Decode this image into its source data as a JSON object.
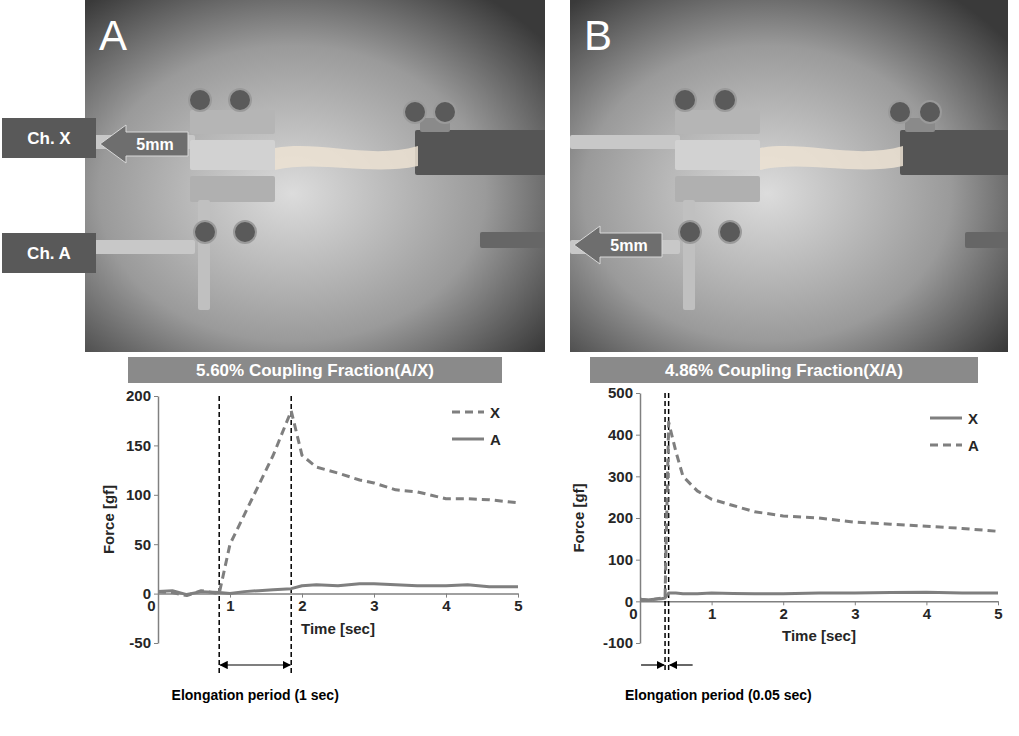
{
  "photos": [
    {
      "letter": "A",
      "labels": [
        "Ch. X",
        "Ch. A"
      ],
      "arrow": "5mm"
    },
    {
      "letter": "B",
      "arrow": "5mm"
    }
  ],
  "chart_data": [
    {
      "type": "line",
      "title": "5.60% Coupling Fraction(A/X)",
      "x_label": "Time [sec]",
      "y_label": "Force [gf]",
      "x": [
        0,
        0.2,
        0.4,
        0.6,
        0.85,
        1.0,
        1.2,
        1.4,
        1.6,
        1.85,
        2.0,
        2.2,
        2.5,
        2.8,
        3.0,
        3.3,
        3.6,
        4.0,
        4.3,
        4.6,
        5.0
      ],
      "series": [
        {
          "name": "X",
          "color": "#7f7f7f",
          "line_style": "dashed",
          "values": [
            2,
            1,
            -2,
            3,
            0,
            50,
            80,
            110,
            140,
            185,
            140,
            128,
            122,
            115,
            112,
            105,
            103,
            96,
            96,
            95,
            92
          ]
        },
        {
          "name": "A",
          "color": "#7f7f7f",
          "line_style": "solid",
          "values": [
            2,
            3,
            -1,
            2,
            1,
            0,
            2,
            3,
            4,
            5,
            8,
            9,
            8,
            10,
            10,
            9,
            8,
            8,
            9,
            7,
            7
          ]
        }
      ],
      "xlim": [
        0,
        5
      ],
      "xticks": [
        0,
        1,
        2,
        3,
        4,
        5
      ],
      "ylim": [
        -50,
        200
      ],
      "yticks": [
        -50,
        0,
        50,
        100,
        150,
        200
      ],
      "legend": "upper right",
      "vlines": [
        0.85,
        1.85
      ],
      "annotation": "Elongation period (1 sec)"
    },
    {
      "type": "line",
      "title": "4.86% Coupling Fraction(X/A)",
      "x_label": "Time [sec]",
      "y_label": "Force [gf]",
      "x": [
        0,
        0.1,
        0.2,
        0.3,
        0.35,
        0.4,
        0.5,
        0.6,
        0.8,
        1.0,
        1.3,
        1.6,
        2.0,
        2.5,
        3.0,
        3.5,
        4.0,
        4.5,
        5.0
      ],
      "series": [
        {
          "name": "X",
          "color": "#7f7f7f",
          "line_style": "solid",
          "values": [
            5,
            3,
            5,
            6,
            8,
            20,
            20,
            18,
            18,
            20,
            19,
            18,
            18,
            20,
            20,
            21,
            22,
            20,
            20
          ]
        },
        {
          "name": "A",
          "color": "#7f7f7f",
          "line_style": "dashed",
          "values": [
            5,
            3,
            5,
            8,
            10,
            430,
            360,
            300,
            265,
            245,
            230,
            215,
            205,
            200,
            190,
            185,
            180,
            175,
            168
          ]
        }
      ],
      "xlim": [
        0,
        5
      ],
      "xticks": [
        0,
        1,
        2,
        3,
        4,
        5
      ],
      "ylim": [
        -100,
        500
      ],
      "yticks": [
        -100,
        0,
        100,
        200,
        300,
        400,
        500
      ],
      "legend": "upper right",
      "vlines": [
        0.35,
        0.4
      ],
      "annotation": "Elongation period (0.05 sec)"
    }
  ]
}
